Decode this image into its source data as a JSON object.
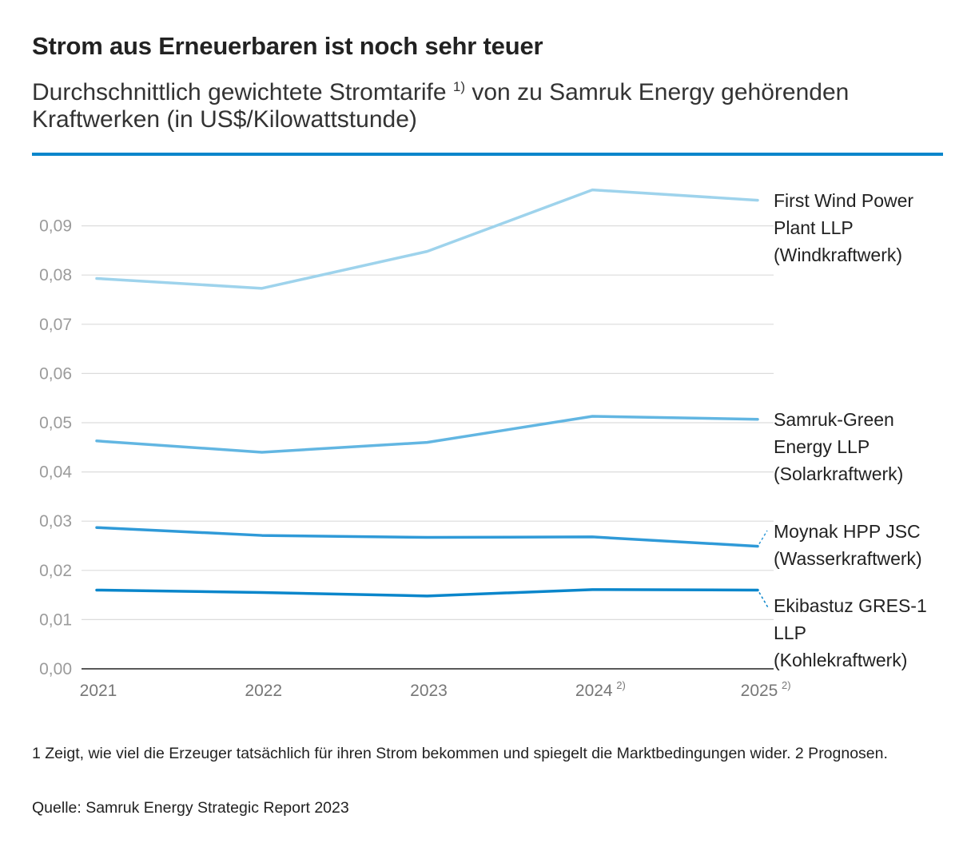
{
  "header": {
    "title": "Strom aus Erneuerbaren ist noch sehr teuer",
    "subtitle_part1": "Durchschnittlich gewichtete Stromtarife",
    "subtitle_sup": "1)",
    "subtitle_part2": "von zu Samruk Energy gehörenden Kraftwerken (in US$/Kilowattstunde)"
  },
  "colors": {
    "rule": "#0a86cb",
    "wind": "#9ed3ec",
    "solar": "#62b6e2",
    "hydro": "#2f9ad8",
    "coal": "#0a86cb"
  },
  "chart_data": {
    "type": "line",
    "title": "Strom aus Erneuerbaren ist noch sehr teuer",
    "xlabel": "",
    "ylabel": "US$/Kilowattstunde",
    "ylim": [
      0,
      0.1
    ],
    "grid": true,
    "x": [
      "2021",
      "2022",
      "2023",
      "2024",
      "2025"
    ],
    "x_sup": [
      "",
      "",
      "",
      "2)",
      "2)"
    ],
    "yticks": [
      "0,00",
      "0,01",
      "0,02",
      "0,03",
      "0,04",
      "0,05",
      "0,06",
      "0,07",
      "0,08",
      "0,09"
    ],
    "ytick_values": [
      0,
      0.01,
      0.02,
      0.03,
      0.04,
      0.05,
      0.06,
      0.07,
      0.08,
      0.09
    ],
    "series": [
      {
        "key": "wind",
        "name": "First Wind Power Plant LLP (Windkraftwerk)",
        "label_lines": [
          "First Wind Power",
          "Plant LLP",
          "(Windkraftwerk)"
        ],
        "values": [
          0.0793,
          0.0773,
          0.0848,
          0.0973,
          0.0952
        ]
      },
      {
        "key": "solar",
        "name": "Samruk-Green Energy LLP (Solarkraftwerk)",
        "label_lines": [
          "Samruk-Green",
          "Energy LLP",
          "(Solarkraftwerk)"
        ],
        "values": [
          0.0463,
          0.044,
          0.046,
          0.0513,
          0.0507
        ]
      },
      {
        "key": "hydro",
        "name": "Moynak HPP JSC (Wasserkraftwerk)",
        "label_lines": [
          "Moynak HPP JSC",
          "(Wasserkraftwerk)"
        ],
        "values": [
          0.0287,
          0.0271,
          0.0267,
          0.0268,
          0.0249
        ]
      },
      {
        "key": "coal",
        "name": "Ekibastuz GRES-1 LLP (Kohlekraftwerk)",
        "label_lines": [
          "Ekibastuz GRES-1",
          "LLP",
          "(Kohlekraftwerk)"
        ],
        "values": [
          0.016,
          0.0155,
          0.0148,
          0.0161,
          0.016
        ]
      }
    ]
  },
  "footer": {
    "footnote": "1 Zeigt, wie viel die Erzeuger tatsächlich für ihren Strom bekommen und spiegelt die Marktbedingungen wider. 2 Prognosen.",
    "source": "Quelle: Samruk Energy Strategic Report 2023"
  }
}
